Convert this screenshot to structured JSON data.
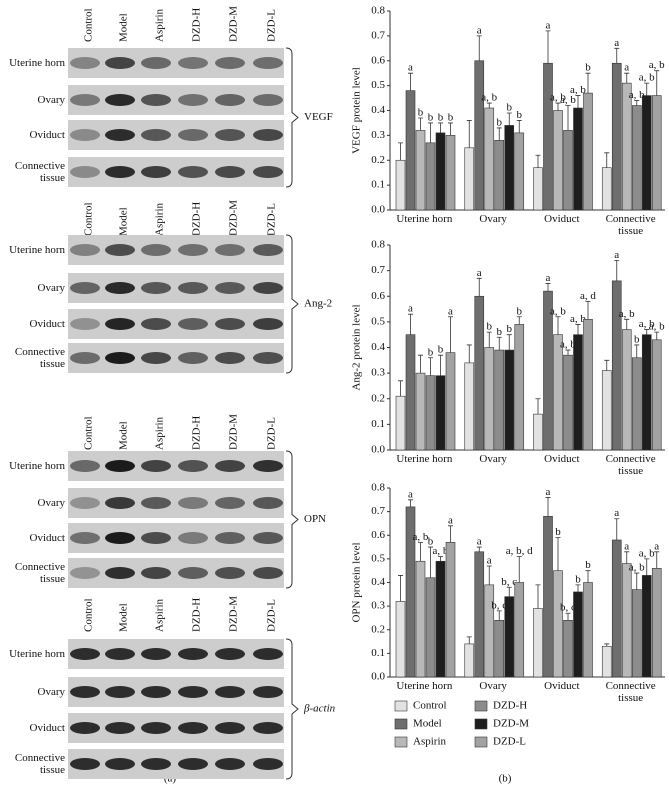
{
  "panels": {
    "a": "(a)",
    "b": "(b)"
  },
  "blots": [
    {
      "marker": "VEGF",
      "lanes": [
        "Control",
        "Model",
        "Aspirin",
        "DZD-H",
        "DZD-M",
        "DZD-L"
      ],
      "rows": [
        "Uterine horn",
        "Ovary",
        "Oviduct",
        "Connective tissue"
      ]
    },
    {
      "marker": "Ang-2",
      "lanes": [
        "Control",
        "Model",
        "Aspirin",
        "DZD-H",
        "DZD-M",
        "DZD-L"
      ],
      "rows": [
        "Uterine horn",
        "Ovary",
        "Oviduct",
        "Connective tissue"
      ]
    },
    {
      "marker": "OPN",
      "lanes": [
        "Control",
        "Model",
        "Aspirin",
        "DZD-H",
        "DZD-M",
        "DZD-L"
      ],
      "rows": [
        "Uterine horn",
        "Ovary",
        "Oviduct",
        "Connective tissue"
      ]
    },
    {
      "marker": "β-actin",
      "lanes": [
        "Control",
        "Model",
        "Aspirin",
        "DZD-H",
        "DZD-M",
        "DZD-L"
      ],
      "rows": [
        "Uterine horn",
        "Ovary",
        "Oviduct",
        "Connective tissue"
      ]
    }
  ],
  "chart_data": [
    {
      "type": "bar",
      "y_label": "VEGF protein level",
      "categories": [
        "Uterine horn",
        "Ovary",
        "Oviduct",
        "Connective tissue"
      ],
      "ylim": [
        0,
        0.8
      ],
      "yticks": [
        {
          "value": 0,
          "label": "0.0"
        },
        0.1,
        0.2,
        0.3,
        0.4,
        0.5,
        0.6,
        0.7,
        0.8
      ],
      "series": [
        {
          "name": "Control",
          "color": "#e2e2e2",
          "values": [
            0.2,
            0.25,
            0.17,
            0.17
          ],
          "errors": [
            0.07,
            0.11,
            0.05,
            0.06
          ],
          "annotations": [
            null,
            null,
            null,
            null
          ]
        },
        {
          "name": "Model",
          "color": "#6e6e6e",
          "values": [
            0.48,
            0.6,
            0.59,
            0.59
          ],
          "errors": [
            0.07,
            0.1,
            0.13,
            0.06
          ],
          "annotations": [
            "a",
            "a",
            "a",
            "a"
          ]
        },
        {
          "name": "Aspirin",
          "color": "#b8b8b8",
          "values": [
            0.32,
            0.41,
            0.4,
            0.51
          ],
          "errors": [
            0.05,
            0.02,
            0.03,
            0.04
          ],
          "annotations": [
            "b",
            "a, b",
            "a, b",
            "a"
          ]
        },
        {
          "name": "DZD-H",
          "color": "#8c8c8c",
          "values": [
            0.27,
            0.28,
            0.32,
            0.42
          ],
          "errors": [
            0.08,
            0.05,
            0.1,
            0.02
          ],
          "annotations": [
            "b",
            "b",
            "a, b",
            "a, b"
          ]
        },
        {
          "name": "DZD-M",
          "color": "#1e1e1e",
          "values": [
            0.31,
            0.34,
            0.41,
            0.46
          ],
          "errors": [
            0.04,
            0.05,
            0.05,
            0.05
          ],
          "annotations": [
            "b",
            "b",
            "a, b",
            "a, b"
          ]
        },
        {
          "name": "DZD-L",
          "color": "#a2a2a2",
          "values": [
            0.3,
            0.31,
            0.47,
            0.46
          ],
          "errors": [
            0.05,
            0.05,
            0.08,
            0.1
          ],
          "annotations": [
            "b",
            "b",
            "b",
            "a, b"
          ]
        }
      ]
    },
    {
      "type": "bar",
      "y_label": "Ang-2 protein level",
      "categories": [
        "Uterine horn",
        "Ovary",
        "Oviduct",
        "Connective tissue"
      ],
      "ylim": [
        0,
        0.8
      ],
      "yticks": [
        {
          "value": 0,
          "label": "0.0"
        },
        0.1,
        0.2,
        0.3,
        0.4,
        0.5,
        0.6,
        0.7,
        0.8
      ],
      "series": [
        {
          "name": "Control",
          "color": "#e2e2e2",
          "values": [
            0.21,
            0.34,
            0.14,
            0.31
          ],
          "errors": [
            0.06,
            0.07,
            0.06,
            0.04
          ],
          "annotations": [
            null,
            null,
            null,
            null
          ]
        },
        {
          "name": "Model",
          "color": "#6e6e6e",
          "values": [
            0.45,
            0.6,
            0.62,
            0.66
          ],
          "errors": [
            0.08,
            0.07,
            0.03,
            0.08
          ],
          "annotations": [
            "a",
            "a",
            "a",
            "a"
          ]
        },
        {
          "name": "Aspirin",
          "color": "#b8b8b8",
          "values": [
            0.3,
            0.4,
            0.45,
            0.47
          ],
          "errors": [
            0.07,
            0.06,
            0.07,
            0.04
          ],
          "annotations": [
            null,
            "b",
            "a, b",
            "a, b"
          ]
        },
        {
          "name": "DZD-H",
          "color": "#8c8c8c",
          "values": [
            0.29,
            0.39,
            0.37,
            0.36
          ],
          "errors": [
            0.07,
            0.05,
            0.02,
            0.05
          ],
          "annotations": [
            "b",
            "b",
            "a, b",
            "b"
          ]
        },
        {
          "name": "DZD-M",
          "color": "#1e1e1e",
          "values": [
            0.29,
            0.39,
            0.45,
            0.45
          ],
          "errors": [
            0.08,
            0.06,
            0.04,
            0.02
          ],
          "annotations": [
            "b",
            "b",
            "a, b",
            "a, b"
          ]
        },
        {
          "name": "DZD-L",
          "color": "#a2a2a2",
          "values": [
            0.38,
            0.49,
            0.51,
            0.43
          ],
          "errors": [
            0.14,
            0.03,
            0.07,
            0.03
          ],
          "annotations": [
            "a",
            "b",
            "a, d",
            "a, b"
          ]
        }
      ]
    },
    {
      "type": "bar",
      "y_label": "OPN protein level",
      "categories": [
        "Uterine horn",
        "Ovary",
        "Oviduct",
        "Connective tissue"
      ],
      "ylim": [
        0,
        0.8
      ],
      "yticks": [
        {
          "value": 0,
          "label": "0.0"
        },
        0.1,
        0.2,
        0.3,
        0.4,
        0.5,
        0.6,
        0.7,
        0.8
      ],
      "legend": "bottom",
      "series": [
        {
          "name": "Control",
          "color": "#e2e2e2",
          "values": [
            0.32,
            0.14,
            0.29,
            0.13
          ],
          "errors": [
            0.11,
            0.03,
            0.1,
            0.01
          ],
          "annotations": [
            null,
            null,
            null,
            null
          ]
        },
        {
          "name": "Model",
          "color": "#6e6e6e",
          "values": [
            0.72,
            0.53,
            0.68,
            0.58
          ],
          "errors": [
            0.03,
            0.02,
            0.08,
            0.09
          ],
          "annotations": [
            "a",
            "a",
            "a",
            "a"
          ]
        },
        {
          "name": "Aspirin",
          "color": "#b8b8b8",
          "values": [
            0.49,
            0.39,
            0.45,
            0.48
          ],
          "errors": [
            0.08,
            0.08,
            0.14,
            0.05
          ],
          "annotations": [
            "a, b",
            "a",
            "b",
            "a"
          ]
        },
        {
          "name": "DZD-H",
          "color": "#8c8c8c",
          "values": [
            0.42,
            0.24,
            0.24,
            0.37
          ],
          "errors": [
            0.13,
            0.04,
            0.03,
            0.07
          ],
          "annotations": [
            "b",
            "b, c",
            "b, c",
            "a, b"
          ]
        },
        {
          "name": "DZD-M",
          "color": "#1e1e1e",
          "values": [
            0.49,
            0.34,
            0.36,
            0.43
          ],
          "errors": [
            0.02,
            0.04,
            0.03,
            0.07
          ],
          "annotations": [
            "a, b",
            "b, c",
            "b",
            "a, b"
          ]
        },
        {
          "name": "DZD-L",
          "color": "#a2a2a2",
          "values": [
            0.57,
            0.4,
            0.4,
            0.46
          ],
          "errors": [
            0.07,
            0.11,
            0.05,
            0.07
          ],
          "annotations": [
            "a",
            "a, b, d",
            "b",
            "a"
          ]
        }
      ]
    }
  ]
}
